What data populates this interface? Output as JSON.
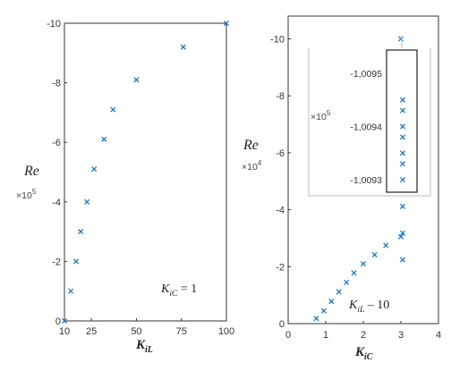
{
  "chart_data": [
    {
      "type": "scatter",
      "ylabel": "Re",
      "y_multiplier": "×10",
      "y_multiplier_exp": "5",
      "xlabel_main": "K",
      "xlabel_sub": "iL",
      "annotation": {
        "main": "K",
        "sub": "iC",
        "rest": " = 1"
      },
      "xlim": [
        10,
        100
      ],
      "ylim": [
        0,
        -10
      ],
      "x_ticks": [
        10,
        25,
        50,
        75,
        100
      ],
      "y_ticks": [
        -10,
        -8,
        -6,
        -4,
        -2,
        0
      ],
      "marker_color": "#1f77c4",
      "points": [
        {
          "x": 10,
          "y": 0
        },
        {
          "x": 13.5,
          "y": -1.0
        },
        {
          "x": 16.5,
          "y": -2.0
        },
        {
          "x": 19,
          "y": -3.0
        },
        {
          "x": 22.5,
          "y": -4.0
        },
        {
          "x": 26.5,
          "y": -5.1
        },
        {
          "x": 32,
          "y": -6.1
        },
        {
          "x": 37,
          "y": -7.1
        },
        {
          "x": 50,
          "y": -8.1
        },
        {
          "x": 76,
          "y": -9.2
        },
        {
          "x": 100,
          "y": -10.0
        }
      ]
    },
    {
      "type": "scatter",
      "ylabel": "Re",
      "y_multiplier": "×10",
      "y_multiplier_exp": "4",
      "xlabel_main": "K",
      "xlabel_sub": "iC",
      "annotation": {
        "main": "K",
        "sub": "iL",
        "rest": " – 10"
      },
      "xlim": [
        0,
        4
      ],
      "ylim": [
        0,
        -10.8
      ],
      "x_ticks": [
        0,
        1,
        2,
        3,
        4
      ],
      "y_ticks": [
        -10,
        -8,
        -6,
        -4,
        -2,
        0
      ],
      "marker_color": "#1f77c4",
      "points": [
        {
          "x": 0.75,
          "y": -0.18
        },
        {
          "x": 0.95,
          "y": -0.45
        },
        {
          "x": 1.15,
          "y": -0.78
        },
        {
          "x": 1.35,
          "y": -1.12
        },
        {
          "x": 1.55,
          "y": -1.45
        },
        {
          "x": 1.75,
          "y": -1.78
        },
        {
          "x": 2.0,
          "y": -2.1
        },
        {
          "x": 2.3,
          "y": -2.42
        },
        {
          "x": 2.6,
          "y": -2.75
        },
        {
          "x": 3.0,
          "y": -3.05
        },
        {
          "x": 3.0,
          "y": -10.0
        }
      ],
      "inset": {
        "y_multiplier": "×10",
        "y_multiplier_exp": "5",
        "y_ticks": [
          "-1,0095",
          "-1,0094",
          "-1,0093"
        ],
        "ylim": [
          -1.00954,
          -1.00928
        ],
        "points_y": [
          -1.00945,
          -1.00943,
          -1.0094,
          -1.00938,
          -1.00935,
          -1.00933,
          -1.0093,
          -1.00925,
          -1.0092,
          -1.00915
        ],
        "top_point_y": -1.00953
      }
    }
  ]
}
